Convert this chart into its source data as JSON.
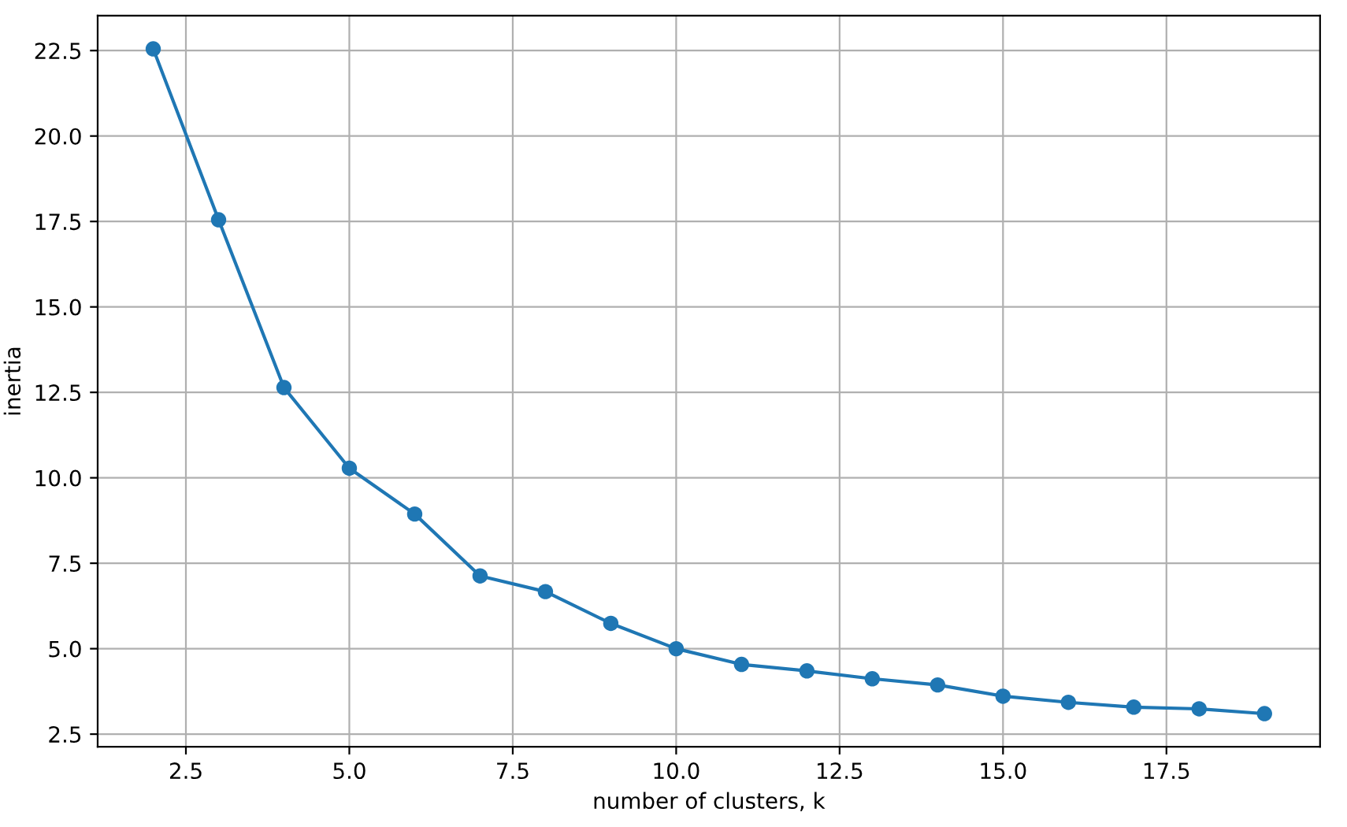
{
  "chart_data": {
    "type": "line",
    "xlabel": "number of clusters, k",
    "ylabel": "inertia",
    "x": [
      2,
      3,
      4,
      5,
      6,
      7,
      8,
      9,
      10,
      11,
      12,
      13,
      14,
      15,
      16,
      17,
      18,
      19
    ],
    "series": [
      {
        "color": "#1f77b4",
        "values": [
          22.55,
          17.55,
          12.64,
          10.28,
          8.94,
          7.13,
          6.67,
          5.74,
          5.0,
          4.54,
          4.35,
          4.12,
          3.94,
          3.61,
          3.43,
          3.29,
          3.24,
          3.1
        ]
      }
    ],
    "xlim": [
      1.15,
      19.85
    ],
    "xticks": [
      2.5,
      {
        "value": 5,
        "label": "5.0"
      },
      7.5,
      {
        "value": 10,
        "label": "10.0"
      },
      12.5,
      {
        "value": 15,
        "label": "15.0"
      },
      17.5
    ],
    "ylim": [
      2.13,
      23.52
    ],
    "yticks": [
      2.5,
      {
        "value": 5,
        "label": "5.0"
      },
      7.5,
      {
        "value": 10,
        "label": "10.0"
      },
      12.5,
      {
        "value": 15,
        "label": "15.0"
      },
      17.5,
      {
        "value": 20,
        "label": "20.0"
      },
      22.5
    ],
    "grid": true,
    "marker": "circle",
    "line_style": "solid"
  }
}
